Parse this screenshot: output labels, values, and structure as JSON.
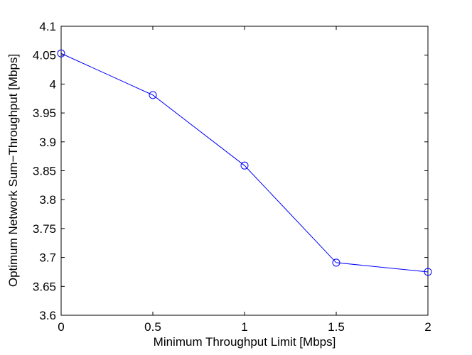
{
  "chart_data": {
    "type": "line",
    "title": "",
    "xlabel": "Minimum Throughput Limit [Mbps]",
    "ylabel": "Optimum Network  Sum−Throughput [Mbps]",
    "xlim": [
      0,
      2
    ],
    "ylim": [
      3.6,
      4.1
    ],
    "xticks": [
      0,
      0.5,
      1,
      1.5,
      2
    ],
    "xtick_labels": [
      "0",
      "0.5",
      "1",
      "1.5",
      "2"
    ],
    "yticks": [
      3.6,
      3.65,
      3.7,
      3.75,
      3.8,
      3.85,
      3.9,
      3.95,
      4.0,
      4.05,
      4.1
    ],
    "ytick_labels": [
      "3.6",
      "3.65",
      "3.7",
      "3.75",
      "3.8",
      "3.85",
      "3.9",
      "3.95",
      "4",
      "4.05",
      "4.1"
    ],
    "grid": false,
    "series": [
      {
        "x": [
          0,
          0.5,
          1,
          1.5,
          2
        ],
        "y": [
          4.053,
          3.981,
          3.859,
          3.691,
          3.675
        ],
        "color": "#0000ff",
        "marker": "circle"
      }
    ]
  }
}
